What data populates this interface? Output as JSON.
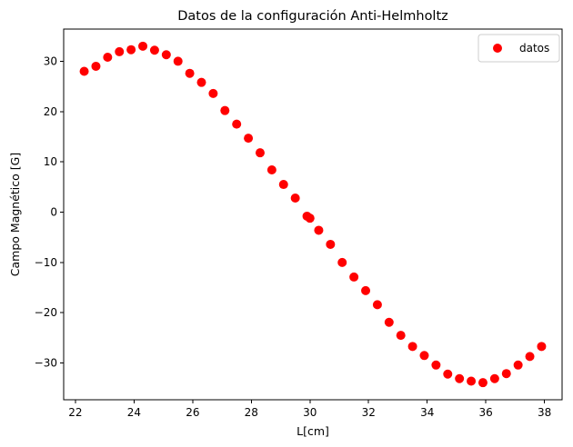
{
  "chart_data": {
    "type": "scatter",
    "title": "Datos de la configuración Anti-Helmholtz",
    "xlabel": "L[cm]",
    "ylabel": "Campo Magnético [G]",
    "xlim": [
      21.6,
      38.6
    ],
    "ylim": [
      -37.3,
      36.4
    ],
    "xticks": [
      22,
      24,
      26,
      28,
      30,
      32,
      34,
      36,
      38
    ],
    "xtick_labels": [
      "22",
      "24",
      "26",
      "28",
      "30",
      "32",
      "34",
      "36",
      "38"
    ],
    "yticks": [
      -30,
      -20,
      -10,
      0,
      10,
      20,
      30
    ],
    "ytick_labels": [
      "−30",
      "−20",
      "−10",
      "0",
      "10",
      "20",
      "30"
    ],
    "grid": false,
    "legend_position": "top-right",
    "series": [
      {
        "name": "datos",
        "color": "#ff0000",
        "marker": "circle",
        "x": [
          22.3,
          22.7,
          23.1,
          23.5,
          23.9,
          24.3,
          24.7,
          25.1,
          25.5,
          25.9,
          26.3,
          26.7,
          27.1,
          27.5,
          27.9,
          28.3,
          28.7,
          29.1,
          29.5,
          29.9,
          30.0,
          30.3,
          30.7,
          31.1,
          31.5,
          31.9,
          32.3,
          32.7,
          33.1,
          33.5,
          33.9,
          34.3,
          34.7,
          35.1,
          35.5,
          35.9,
          36.3,
          36.7,
          37.1,
          37.5,
          37.9
        ],
        "y": [
          28.0,
          29.0,
          30.8,
          31.9,
          32.3,
          33.0,
          32.2,
          31.3,
          30.0,
          27.6,
          25.8,
          23.6,
          20.2,
          17.5,
          14.7,
          11.8,
          8.4,
          5.5,
          2.8,
          -0.8,
          -1.2,
          -3.6,
          -6.4,
          -10.0,
          -12.9,
          -15.6,
          -18.4,
          -21.9,
          -24.5,
          -26.7,
          -28.5,
          -30.4,
          -32.2,
          -33.1,
          -33.6,
          -33.9,
          -33.1,
          -32.1,
          -30.4,
          -28.7,
          -26.7
        ]
      }
    ]
  }
}
